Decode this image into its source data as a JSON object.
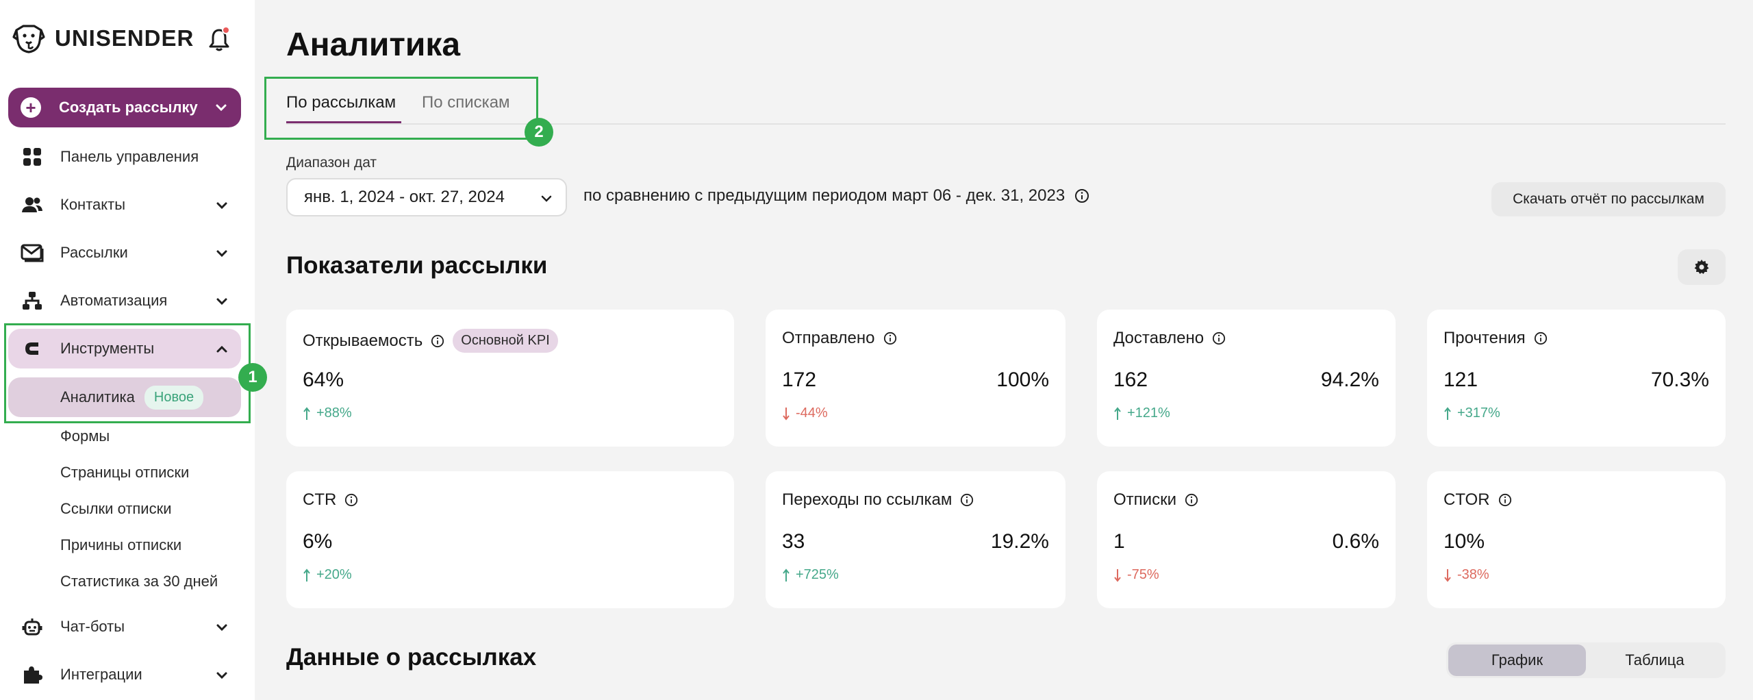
{
  "app": {
    "brand": "UNISENDER",
    "icons": {
      "logo": "dog-logo-icon",
      "bell": "bell-icon"
    },
    "colors": {
      "brand_purple": "#7a2d6e",
      "annotation_green": "#33ad4f",
      "positive": "#45a88a",
      "negative": "#dd6a5f"
    }
  },
  "sidebar": {
    "create_button": "Создать рассылку",
    "items": [
      {
        "label": "Панель управления",
        "icon": "grid-icon"
      },
      {
        "label": "Контакты",
        "icon": "people-icon"
      },
      {
        "label": "Рассылки",
        "icon": "envelope-icon"
      },
      {
        "label": "Автоматизация",
        "icon": "flow-icon"
      },
      {
        "label": "Инструменты",
        "icon": "magnet-icon"
      }
    ],
    "tools_submenu": {
      "active": {
        "label": "Аналитика",
        "badge": "Новое"
      },
      "items": [
        "Формы",
        "Страницы отписки",
        "Ссылки отписки",
        "Причины отписки",
        "Статистика за 30 дней"
      ]
    },
    "bottom_items": [
      {
        "label": "Чат-боты",
        "icon": "robot-icon"
      },
      {
        "label": "Интеграции",
        "icon": "puzzle-icon"
      }
    ],
    "annotation_marker": "1"
  },
  "main": {
    "title": "Аналитика",
    "tabs": [
      {
        "label": "По рассылкам",
        "active": true
      },
      {
        "label": "По спискам",
        "active": false
      }
    ],
    "tabs_annotation_marker": "2",
    "date_range": {
      "label": "Диапазон дат",
      "value": "янв. 1, 2024 - окт. 27, 2024",
      "comparison": "по сравнению с предыдущим периодом март 06 - дек. 31, 2023"
    },
    "download_button": "Скачать отчёт по рассылкам",
    "metrics_section_title": "Показатели рассылки",
    "metrics": [
      {
        "title": "Открываемость",
        "badge": "Основной KPI",
        "value": "64%",
        "pct": "",
        "delta": "+88%",
        "trend": "up"
      },
      {
        "title": "Отправлено",
        "value": "172",
        "pct": "100%",
        "delta": "-44%",
        "trend": "down"
      },
      {
        "title": "Доставлено",
        "value": "162",
        "pct": "94.2%",
        "delta": "+121%",
        "trend": "up"
      },
      {
        "title": "Прочтения",
        "value": "121",
        "pct": "70.3%",
        "delta": "+317%",
        "trend": "up"
      },
      {
        "title": "CTR",
        "value": "6%",
        "pct": "",
        "delta": "+20%",
        "trend": "up"
      },
      {
        "title": "Переходы по ссылкам",
        "value": "33",
        "pct": "19.2%",
        "delta": "+725%",
        "trend": "up"
      },
      {
        "title": "Отписки",
        "value": "1",
        "pct": "0.6%",
        "delta": "-75%",
        "trend": "down"
      },
      {
        "title": "CTOR",
        "value": "10%",
        "pct": "",
        "delta": "-38%",
        "trend": "down"
      }
    ],
    "data_section_title": "Данные о рассылках",
    "view_toggle": [
      {
        "label": "График",
        "selected": true
      },
      {
        "label": "Таблица",
        "selected": false
      }
    ]
  }
}
